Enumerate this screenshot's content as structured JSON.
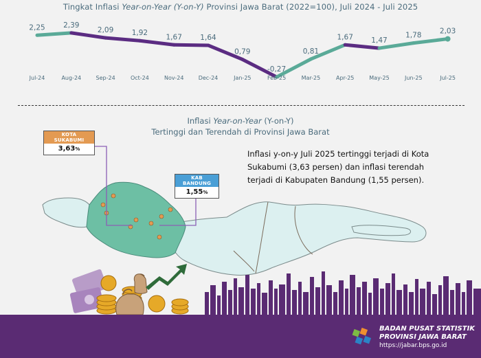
{
  "chart_data": {
    "type": "line",
    "title_prefix": "Tingkat Inflasi ",
    "title_italic": "Year-on-Year (Y-on-Y)",
    "title_suffix": " Provinsi Jawa Barat (2022=100), Juli 2024 - Juli 2025",
    "categories": [
      "Jul-24",
      "Aug-24",
      "Sep-24",
      "Oct-24",
      "Nov-24",
      "Dec-24",
      "Jan-25",
      "Feb-25",
      "Mar-25",
      "Apr-25",
      "May-25",
      "Jun-25",
      "Jul-25"
    ],
    "values": [
      2.25,
      2.39,
      2.09,
      1.92,
      1.67,
      1.64,
      0.79,
      -0.27,
      0.81,
      1.67,
      1.47,
      1.78,
      2.03
    ],
    "value_labels": [
      "2,25",
      "2,39",
      "2,09",
      "1,92",
      "1,67",
      "1,64",
      "0,79",
      "-0,27",
      "0,81",
      "1,67",
      "1,47",
      "1,78",
      "2,03"
    ],
    "ylim": [
      -0.6,
      2.8
    ],
    "grid": false,
    "colors": {
      "teal": "#5aaa98",
      "purple": "#5b2c82"
    }
  },
  "map_section": {
    "title_prefix": "Inflasi ",
    "title_italic": "Year-on-Year",
    "title_suffix": " (Y-on-Y)",
    "subtitle": "Tertinggi dan Terendah di Provinsi Jawa Barat",
    "description": "Inflasi y-on-y Juli 2025 tertinggi terjadi di Kota Sukabumi (3,63 persen) dan inflasi terendah terjadi di Kabupaten Bandung (1,55 persen).",
    "highest": {
      "name": "KOTA SUKABUMI",
      "value": "3,63",
      "unit": "%"
    },
    "lowest": {
      "name": "KAB BANDUNG",
      "value": "1,55",
      "unit": "%"
    },
    "colors": {
      "west_java": "#6dbfa4",
      "java": "#dcf0f0",
      "city_dot": "#e39a52",
      "callout_line": "#8b5fb5"
    }
  },
  "footer": {
    "org_line1": "BADAN PUSAT STATISTIK",
    "org_line2": "PROVINSI JAWA BARAT",
    "url": "https://jabar.bps.go.id",
    "color": "#5a2b73"
  }
}
